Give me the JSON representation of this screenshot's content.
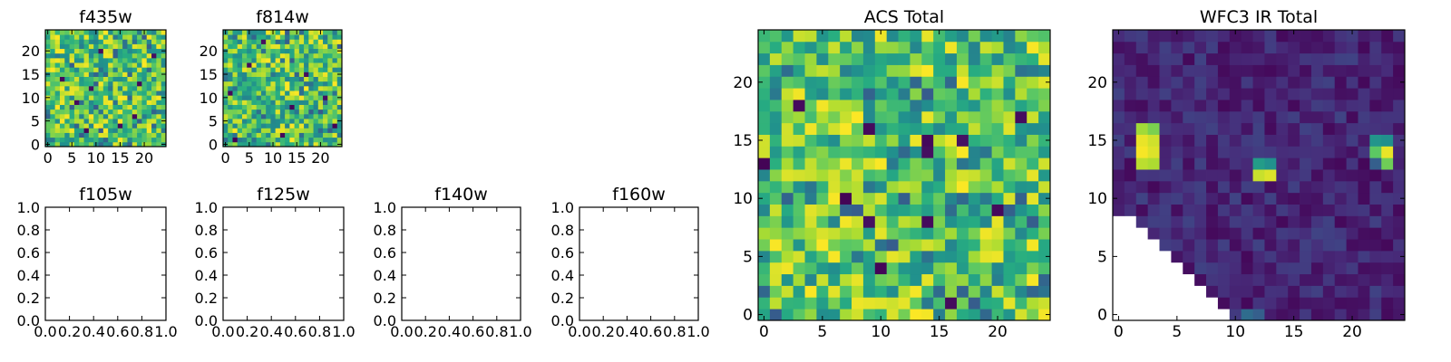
{
  "figure": {
    "empty_tick_labels": [
      "0.0",
      "0.2",
      "0.4",
      "0.6",
      "0.8",
      "1.0"
    ]
  },
  "colormap": {
    "name": "viridis",
    "stops": [
      "#440154",
      "#472c7a",
      "#3b528b",
      "#2c728e",
      "#21908d",
      "#27ad81",
      "#5cc863",
      "#aadc32",
      "#fde725"
    ]
  },
  "chart_data": [
    {
      "type": "heatmap",
      "title": "f435w",
      "size": [
        25,
        25
      ],
      "x_ticks": [
        0,
        5,
        10,
        15,
        20
      ],
      "y_ticks": [
        0,
        5,
        10,
        15,
        20
      ],
      "x_tick_labels": [
        "0",
        "5",
        "10",
        "15",
        "20"
      ],
      "y_tick_labels": [
        "0",
        "5",
        "10",
        "15",
        "20"
      ],
      "value_range": [
        0,
        1
      ],
      "pattern": "noise",
      "seed": 11,
      "dark_cells": [
        [
          8,
          3
        ],
        [
          15,
          4
        ],
        [
          9,
          12
        ],
        [
          18,
          6
        ],
        [
          22,
          19
        ],
        [
          3,
          14
        ],
        [
          11,
          20
        ],
        [
          19,
          13
        ],
        [
          6,
          9
        ]
      ],
      "missing_cells": []
    },
    {
      "type": "heatmap",
      "title": "f814w",
      "size": [
        25,
        25
      ],
      "x_ticks": [
        0,
        5,
        10,
        15,
        20
      ],
      "y_ticks": [
        0,
        5,
        10,
        15,
        20
      ],
      "x_tick_labels": [
        "0",
        "5",
        "10",
        "15",
        "20"
      ],
      "y_tick_labels": [
        "0",
        "5",
        "10",
        "15",
        "20"
      ],
      "value_range": [
        0,
        1
      ],
      "pattern": "noise",
      "seed": 23,
      "dark_cells": [
        [
          2,
          1
        ],
        [
          8,
          22
        ],
        [
          5,
          17
        ],
        [
          14,
          8
        ],
        [
          21,
          10
        ],
        [
          12,
          2
        ],
        [
          17,
          15
        ],
        [
          1,
          11
        ],
        [
          23,
          4
        ]
      ],
      "missing_cells": []
    },
    {
      "type": "empty",
      "title": "f105w",
      "xlim": [
        0.0,
        1.0
      ],
      "ylim": [
        0.0,
        1.0
      ],
      "x_ticks": [
        0.0,
        0.2,
        0.4,
        0.6,
        0.8,
        1.0
      ],
      "y_ticks": [
        0.0,
        0.2,
        0.4,
        0.6,
        0.8,
        1.0
      ]
    },
    {
      "type": "empty",
      "title": "f125w",
      "xlim": [
        0.0,
        1.0
      ],
      "ylim": [
        0.0,
        1.0
      ],
      "x_ticks": [
        0.0,
        0.2,
        0.4,
        0.6,
        0.8,
        1.0
      ],
      "y_ticks": [
        0.0,
        0.2,
        0.4,
        0.6,
        0.8,
        1.0
      ]
    },
    {
      "type": "empty",
      "title": "f140w",
      "xlim": [
        0.0,
        1.0
      ],
      "ylim": [
        0.0,
        1.0
      ],
      "x_ticks": [
        0.0,
        0.2,
        0.4,
        0.6,
        0.8,
        1.0
      ],
      "y_ticks": [
        0.0,
        0.2,
        0.4,
        0.6,
        0.8,
        1.0
      ]
    },
    {
      "type": "empty",
      "title": "f160w",
      "xlim": [
        0.0,
        1.0
      ],
      "ylim": [
        0.0,
        1.0
      ],
      "x_ticks": [
        0.0,
        0.2,
        0.4,
        0.6,
        0.8,
        1.0
      ],
      "y_ticks": [
        0.0,
        0.2,
        0.4,
        0.6,
        0.8,
        1.0
      ]
    },
    {
      "type": "heatmap",
      "title": "ACS Total",
      "size": [
        25,
        25
      ],
      "x_ticks": [
        0,
        5,
        10,
        15,
        20
      ],
      "y_ticks": [
        0,
        5,
        10,
        15,
        20
      ],
      "x_tick_labels": [
        "0",
        "5",
        "10",
        "15",
        "20"
      ],
      "y_tick_labels": [
        "0",
        "5",
        "10",
        "15",
        "20"
      ],
      "value_range": [
        0,
        1
      ],
      "pattern": "noise",
      "seed": 37,
      "dark_cells": [
        [
          14,
          15
        ],
        [
          14,
          14
        ],
        [
          17,
          15
        ],
        [
          9,
          16
        ],
        [
          7,
          10
        ],
        [
          20,
          9
        ],
        [
          9,
          8
        ],
        [
          14,
          8
        ],
        [
          10,
          4
        ],
        [
          0,
          13
        ],
        [
          16,
          1
        ],
        [
          3,
          18
        ],
        [
          22,
          17
        ]
      ],
      "missing_cells": []
    },
    {
      "type": "heatmap",
      "title": "WFC3 IR Total",
      "size": [
        25,
        25
      ],
      "x_ticks": [
        0,
        5,
        10,
        15,
        20
      ],
      "y_ticks": [
        0,
        5,
        10,
        15,
        20
      ],
      "x_tick_labels": [
        "0",
        "5",
        "10",
        "15",
        "20"
      ],
      "y_tick_labels": [
        "0",
        "5",
        "10",
        "15",
        "20"
      ],
      "value_range": [
        0,
        1
      ],
      "pattern": "low",
      "seed": 53,
      "bright_cells": [
        {
          "x": 2,
          "y": 16,
          "v": 0.86
        },
        {
          "x": 3,
          "y": 16,
          "v": 0.8
        },
        {
          "x": 2,
          "y": 15,
          "v": 0.97
        },
        {
          "x": 3,
          "y": 15,
          "v": 0.93
        },
        {
          "x": 2,
          "y": 14,
          "v": 0.99
        },
        {
          "x": 3,
          "y": 14,
          "v": 0.95
        },
        {
          "x": 2,
          "y": 13,
          "v": 0.9
        },
        {
          "x": 3,
          "y": 13,
          "v": 0.88
        },
        {
          "x": 12,
          "y": 13,
          "v": 0.55
        },
        {
          "x": 13,
          "y": 13,
          "v": 0.5
        },
        {
          "x": 12,
          "y": 12,
          "v": 0.92
        },
        {
          "x": 13,
          "y": 12,
          "v": 0.95
        },
        {
          "x": 22,
          "y": 15,
          "v": 0.52
        },
        {
          "x": 23,
          "y": 15,
          "v": 0.5
        },
        {
          "x": 22,
          "y": 14,
          "v": 0.75
        },
        {
          "x": 23,
          "y": 14,
          "v": 0.97
        },
        {
          "x": 23,
          "y": 13,
          "v": 0.78
        },
        {
          "x": 22,
          "y": 13,
          "v": 0.3
        },
        {
          "x": 11,
          "y": 0,
          "v": 0.35
        },
        {
          "x": 12,
          "y": 0,
          "v": 0.3
        }
      ],
      "missing_cells": "x + y < 10 diagonal lower-left (masked region)"
    }
  ]
}
